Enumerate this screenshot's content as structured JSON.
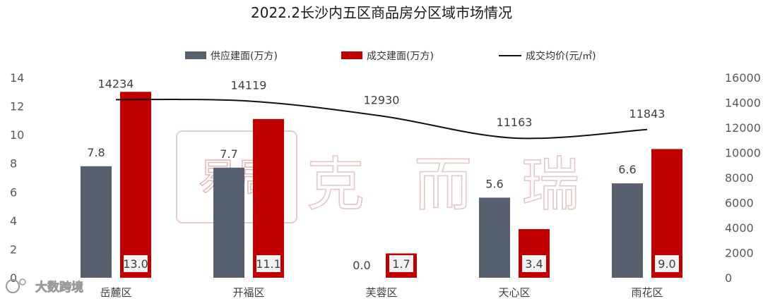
{
  "chart_data": {
    "type": "bar",
    "title": "2022.2长沙内五区商品房分区域市场情况",
    "categories": [
      "岳麓区",
      "开福区",
      "芙蓉区",
      "天心区",
      "雨花区"
    ],
    "series": [
      {
        "name": "供应建面(万方)",
        "type": "bar",
        "axis": "left",
        "color": "#56606e",
        "values": [
          7.8,
          7.7,
          0.0,
          5.6,
          6.6
        ],
        "labels": [
          "7.8",
          "7.7",
          "0.0",
          "5.6",
          "6.6"
        ]
      },
      {
        "name": "成交建面(万方)",
        "type": "bar",
        "axis": "left",
        "color": "#c00000",
        "values": [
          13.0,
          11.1,
          1.7,
          3.4,
          9.0
        ],
        "labels": [
          "13.0",
          "11.1",
          "1.7",
          "3.4",
          "9.0"
        ]
      },
      {
        "name": "成交均价(元/㎡)",
        "type": "line",
        "axis": "right",
        "color": "#111111",
        "values": [
          14234,
          14119,
          12930,
          11163,
          11843
        ],
        "labels": [
          "14234",
          "14119",
          "12930",
          "11163",
          "11843"
        ]
      }
    ],
    "y_left": {
      "ylim": [
        0,
        14
      ],
      "ticks": [
        "0",
        "2",
        "4",
        "6",
        "8",
        "10",
        "12",
        "14"
      ]
    },
    "y_right": {
      "ylim": [
        0,
        16000
      ],
      "ticks": [
        "0",
        "2000",
        "4000",
        "6000",
        "8000",
        "10000",
        "12000",
        "14000",
        "16000"
      ]
    },
    "legend_position": "top",
    "grid": false
  },
  "watermark": {
    "text": "克 而 瑞",
    "stamp_text": "易居"
  },
  "corner_watermark": {
    "text": "大数跨境"
  }
}
